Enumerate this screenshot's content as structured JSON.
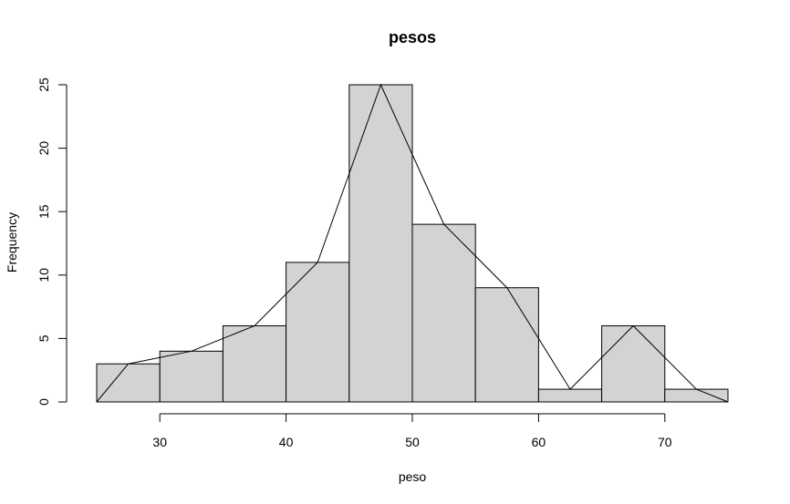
{
  "chart_data": {
    "type": "bar",
    "title": "pesos",
    "xlabel": "peso",
    "ylabel": "Frequency",
    "bins": [
      [
        25,
        30
      ],
      [
        30,
        35
      ],
      [
        35,
        40
      ],
      [
        40,
        45
      ],
      [
        45,
        50
      ],
      [
        50,
        55
      ],
      [
        55,
        60
      ],
      [
        60,
        65
      ],
      [
        65,
        70
      ],
      [
        70,
        75
      ]
    ],
    "values": [
      3,
      4,
      6,
      11,
      25,
      14,
      9,
      1,
      6,
      1
    ],
    "xlim": [
      25,
      75
    ],
    "ylim": [
      0,
      25
    ],
    "xticks": [
      30,
      40,
      50,
      60,
      70
    ],
    "yticks": [
      0,
      5,
      10,
      15,
      20,
      25
    ],
    "frequency_polygon": {
      "x": [
        25,
        27.5,
        32.5,
        37.5,
        42.5,
        47.5,
        52.5,
        57.5,
        62.5,
        67.5,
        72.5,
        75
      ],
      "y": [
        0,
        3,
        4,
        6,
        11,
        25,
        14,
        9,
        1,
        6,
        1,
        0
      ]
    },
    "grid": false
  }
}
